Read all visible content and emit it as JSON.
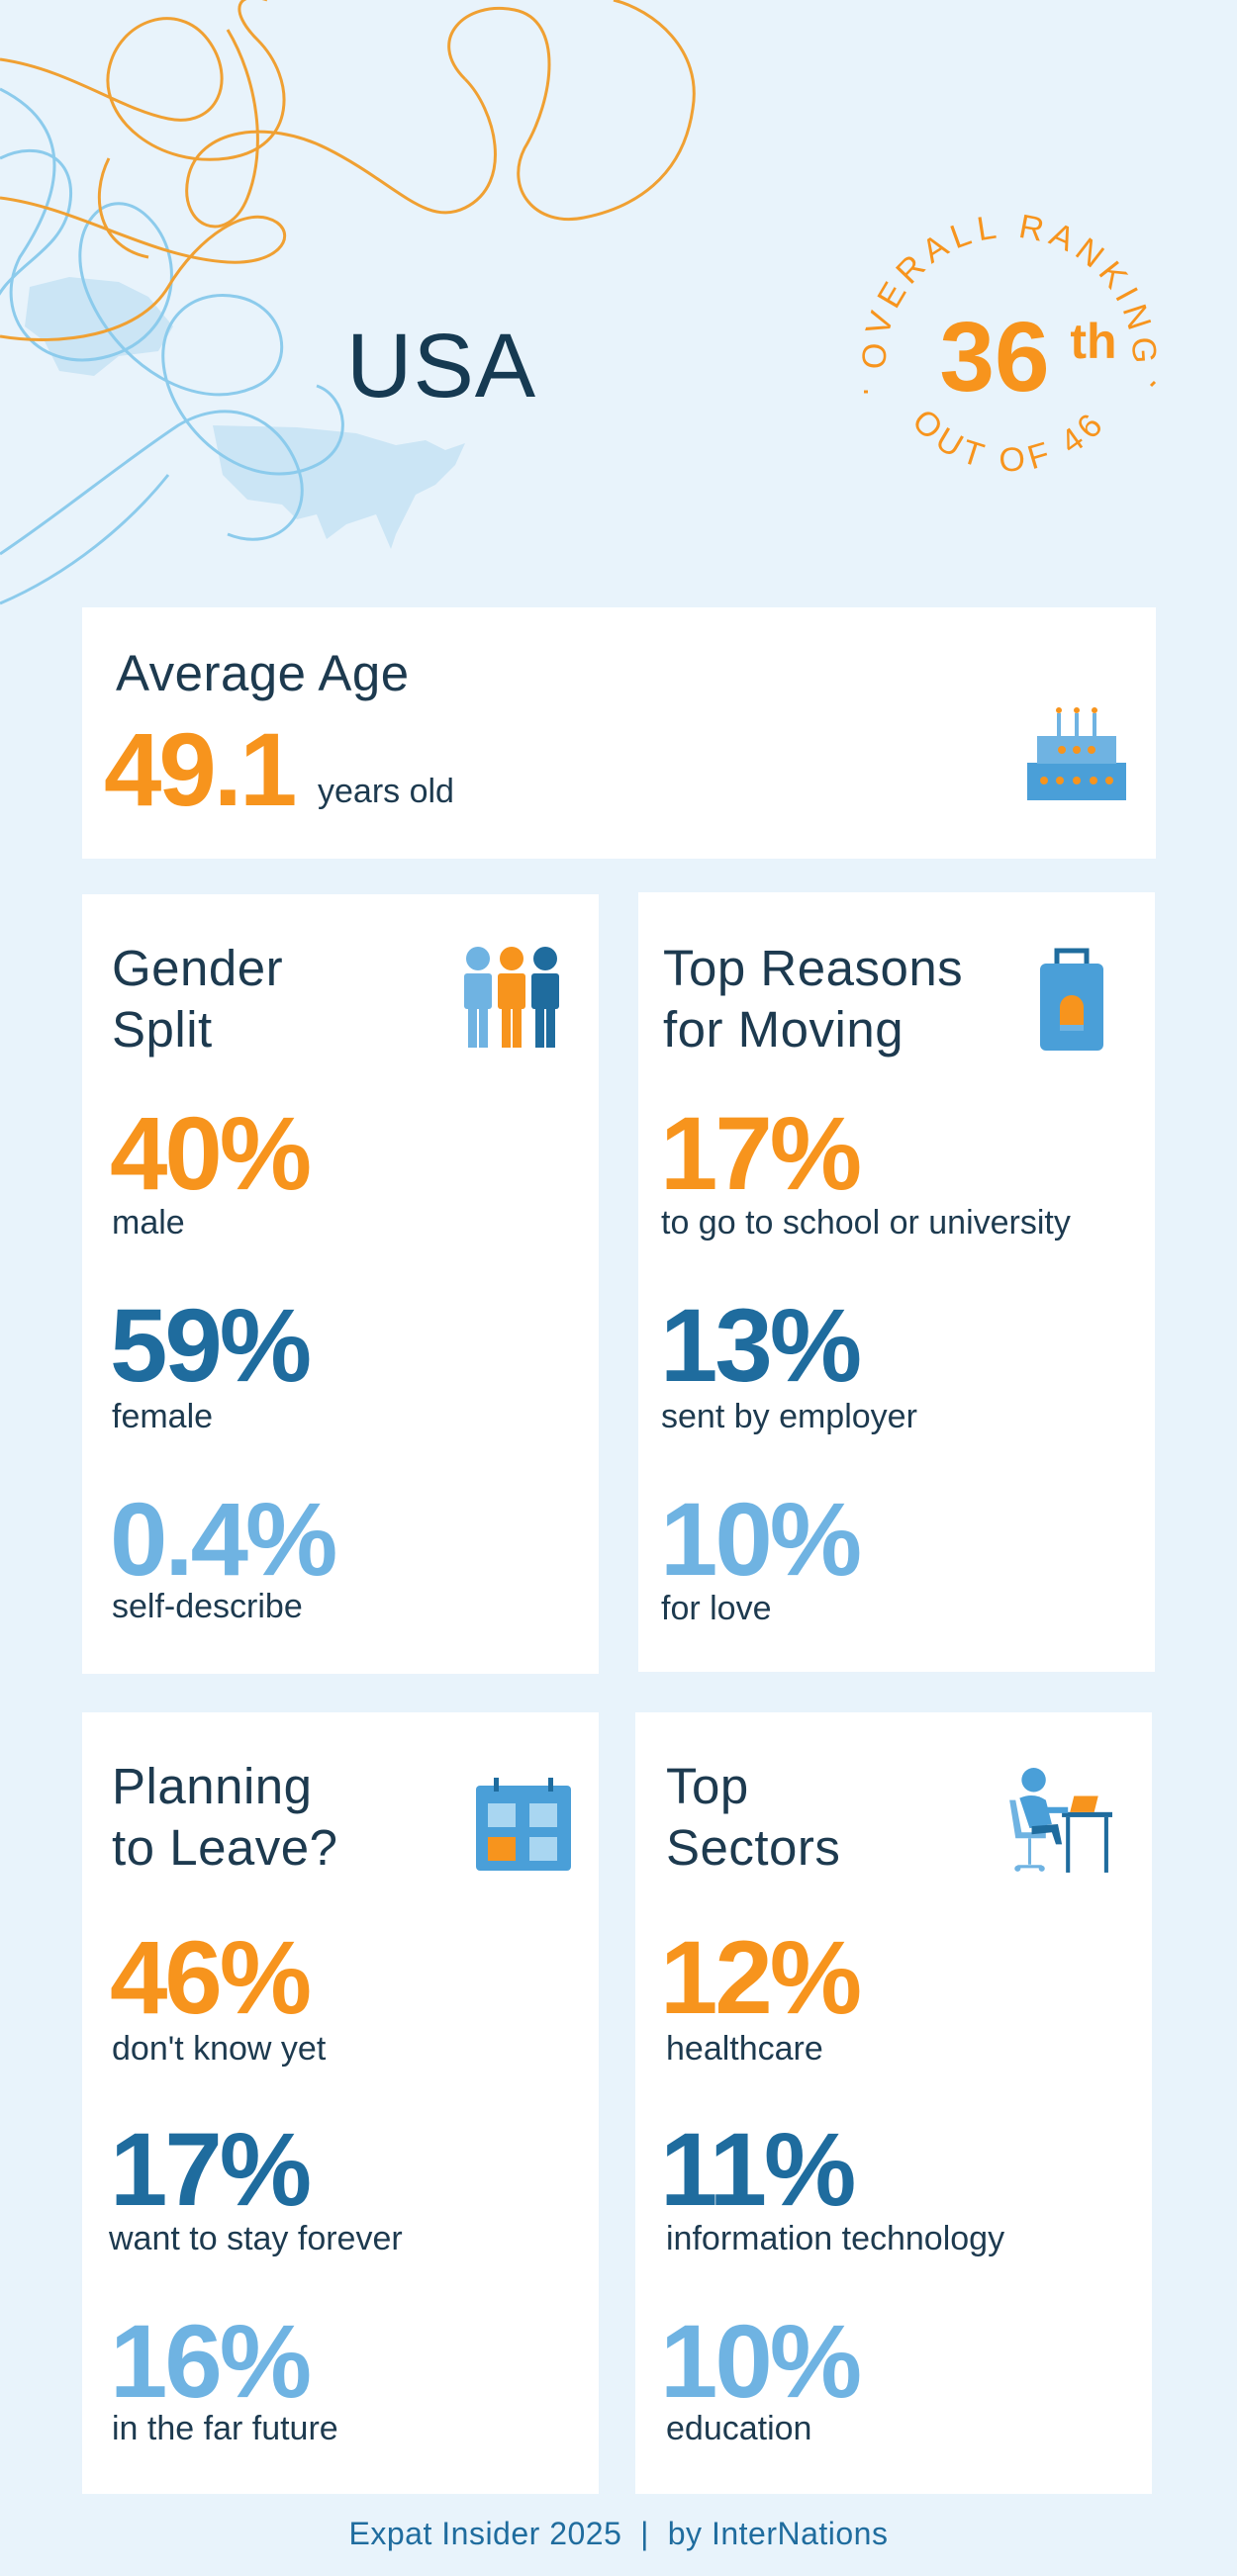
{
  "header": {
    "country": "USA",
    "ranking_top": "OVERALL RANKING",
    "ranking_bottom": "OUT OF 46",
    "rank_number": "36",
    "rank_suffix": "th"
  },
  "average_age": {
    "title": "Average Age",
    "value": "49.1",
    "unit": "years old",
    "icon": "birthday-cake-icon"
  },
  "gender_split": {
    "title_line1": "Gender",
    "title_line2": "Split",
    "icon": "people-icon",
    "stats": [
      {
        "value": "40%",
        "label": "male"
      },
      {
        "value": "59%",
        "label": "female"
      },
      {
        "value": "0.4%",
        "label": "self-describe"
      }
    ]
  },
  "top_reasons": {
    "title_line1": "Top Reasons",
    "title_line2": "for Moving",
    "icon": "suitcase-icon",
    "stats": [
      {
        "value": "17%",
        "label": "to go to school or university"
      },
      {
        "value": "13%",
        "label": "sent by employer"
      },
      {
        "value": "10%",
        "label": "for love"
      }
    ]
  },
  "planning_to_leave": {
    "title_line1": "Planning",
    "title_line2": "to Leave?",
    "icon": "calendar-icon",
    "stats": [
      {
        "value": "46%",
        "label": "don't know yet"
      },
      {
        "value": "17%",
        "label": "want to stay forever"
      },
      {
        "value": "16%",
        "label": "in the far future"
      }
    ]
  },
  "top_sectors": {
    "title_line1": "Top",
    "title_line2": "Sectors",
    "icon": "person-at-desk-icon",
    "stats": [
      {
        "value": "12%",
        "label": "healthcare"
      },
      {
        "value": "11%",
        "label": "information technology"
      },
      {
        "value": "10%",
        "label": "education"
      }
    ]
  },
  "footer": {
    "text": "Expat Insider 2025  |  by InterNations"
  },
  "colors": {
    "background": "#e8f3fb",
    "orange": "#f7941d",
    "dark_blue": "#1f6c9e",
    "light_blue": "#6fb3e2",
    "title": "#163a52"
  }
}
